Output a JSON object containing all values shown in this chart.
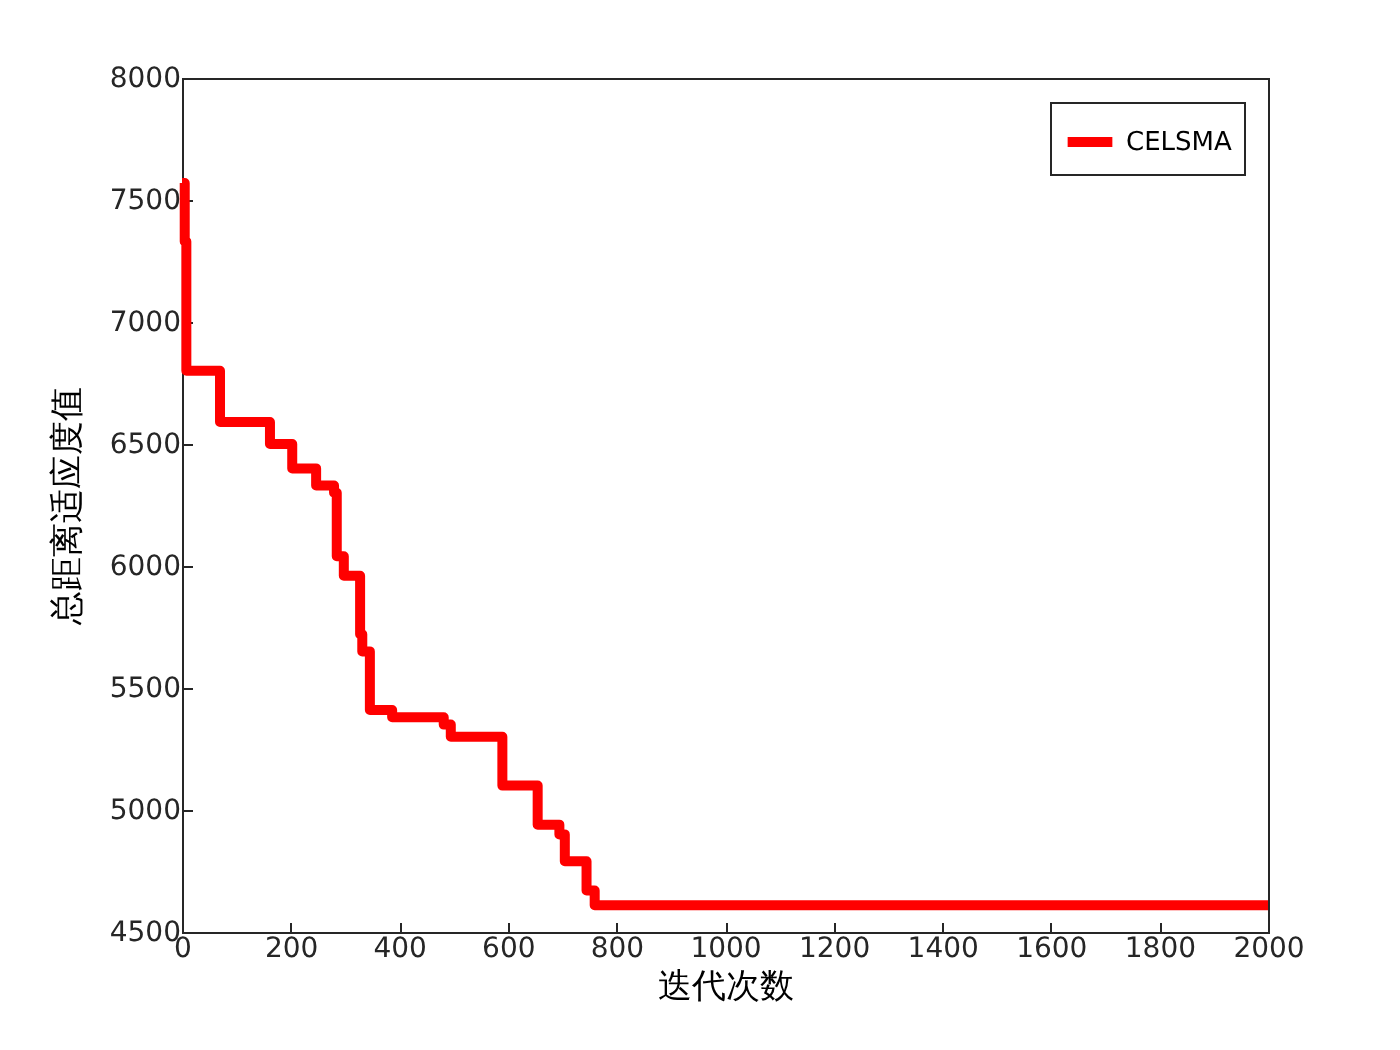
{
  "chart_data": {
    "type": "step",
    "xlabel": "迭代次数",
    "ylabel": "总距离适应度值",
    "x": [
      0,
      5,
      8,
      70,
      162,
      203,
      247,
      280,
      285,
      298,
      328,
      332,
      346,
      387,
      482,
      495,
      590,
      655,
      695,
      705,
      745,
      760,
      2000
    ],
    "series": [
      {
        "name": "CELSMA",
        "color": "#ff0000",
        "values": [
          7570,
          7330,
          6800,
          6590,
          6500,
          6400,
          6330,
          6300,
          6040,
          5960,
          5720,
          5650,
          5410,
          5380,
          5350,
          5300,
          5100,
          4940,
          4900,
          4790,
          4670,
          4610,
          4610
        ]
      }
    ],
    "xlim": [
      0,
      2000
    ],
    "xticks": [
      0,
      200,
      400,
      600,
      800,
      1000,
      1200,
      1400,
      1600,
      1800,
      2000
    ],
    "ylim": [
      4500,
      8000
    ],
    "yticks": [
      4500,
      5000,
      5500,
      6000,
      6500,
      7000,
      7500,
      8000
    ],
    "grid": false,
    "legend": "top right",
    "line_style": "solid"
  }
}
